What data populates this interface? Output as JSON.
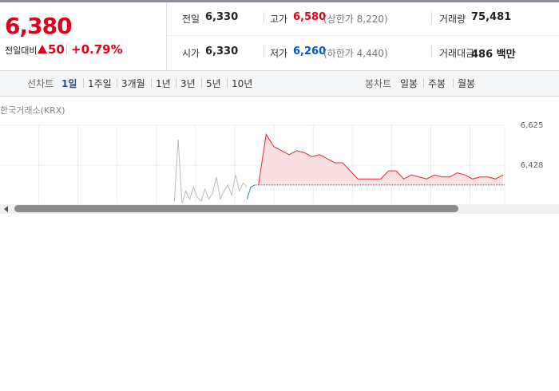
{
  "quote": {
    "price": "6,380",
    "change_label": "전일대비",
    "change": "50",
    "change_rate": "+0.79%"
  },
  "info": [
    [
      {
        "label": "전일",
        "value": "6,330"
      },
      {
        "label": "고가",
        "value": "6,580",
        "note": "(상한가 8,220)"
      },
      {
        "label": "거래량",
        "value": "75,481"
      }
    ],
    [
      {
        "label": "시가",
        "value": "6,330"
      },
      {
        "label": "저가",
        "value": "6,260",
        "note": "(하한가 4,440)"
      },
      {
        "label": "거래대금",
        "value": "486 백만"
      }
    ]
  ],
  "tabs": {
    "line_label": "선차트",
    "line": [
      "1일",
      "1주일",
      "3개월",
      "1년",
      "3년",
      "5년",
      "10년"
    ],
    "candle_label": "봉차트",
    "candle": [
      "일봉",
      "주봉",
      "월봉"
    ]
  },
  "source": "한국거래소(KRX)",
  "chart_data": {
    "type": "line",
    "xlim": [
      -22.8,
      43.2
    ],
    "ylim": [
      6239,
      6625
    ],
    "yticks": [
      {
        "value": 6625,
        "label": "6,625"
      },
      {
        "value": 6428,
        "label": "6,428"
      }
    ],
    "baseline": 6330,
    "series": [
      {
        "color": "#bbbbbb",
        "x": [
          0,
          0.5,
          1,
          1.5,
          2,
          2.5,
          3,
          3.5,
          4,
          4.5,
          5,
          5.5,
          6,
          6.5,
          7,
          7.5,
          8,
          8.5,
          9,
          9.5
        ],
        "values": [
          6250,
          6554,
          6240,
          6300,
          6260,
          6320,
          6270,
          6250,
          6310,
          6260,
          6290,
          6370,
          6260,
          6300,
          6330,
          6280,
          6380,
          6300,
          6340,
          6320
        ]
      },
      {
        "color": "#3a7bd5",
        "x": [
          9.5,
          10,
          10.5
        ],
        "values": [
          6260,
          6320,
          6330
        ]
      },
      {
        "color": "#e8262b",
        "fill": "#fbe0e1",
        "x": [
          11,
          12,
          13,
          14,
          15,
          16,
          17,
          18,
          19,
          20,
          21,
          22,
          23,
          24,
          25,
          26,
          27,
          28,
          29,
          30,
          31,
          32,
          33,
          34,
          35,
          36,
          37,
          38,
          39,
          40,
          41,
          42,
          43
        ],
        "values": [
          6330,
          6580,
          6520,
          6500,
          6480,
          6500,
          6490,
          6470,
          6480,
          6460,
          6440,
          6440,
          6400,
          6360,
          6360,
          6360,
          6360,
          6400,
          6400,
          6360,
          6380,
          6370,
          6360,
          6380,
          6370,
          6370,
          6390,
          6380,
          6360,
          6370,
          6370,
          6360,
          6380
        ]
      }
    ]
  }
}
